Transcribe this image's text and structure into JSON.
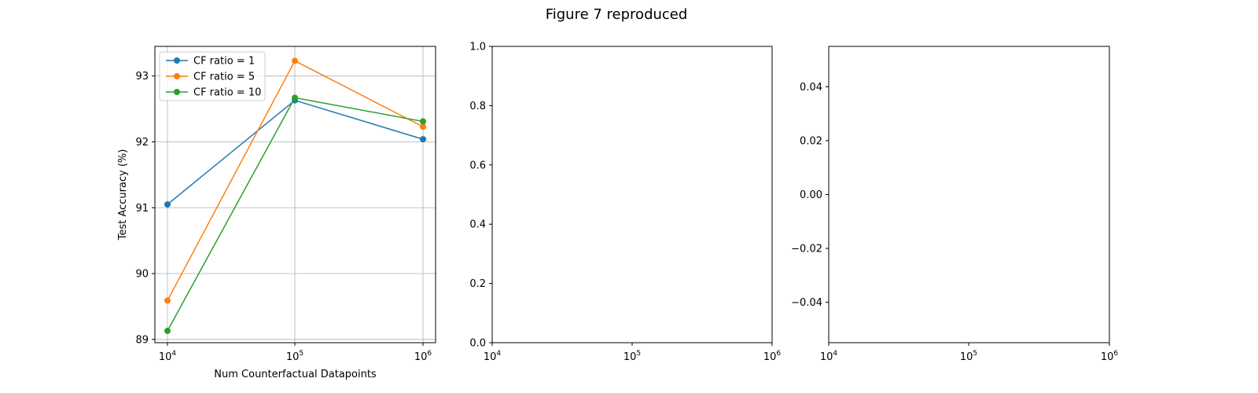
{
  "figure": {
    "title": "Figure 7 reproduced"
  },
  "chart_data": [
    {
      "type": "line",
      "xscale": "log",
      "x": [
        10000,
        100000,
        1000000
      ],
      "xticks": [
        "10^4",
        "10^5",
        "10^6"
      ],
      "xlabel": "Num Counterfactual Datapoints",
      "ylabel": "Test Accuracy (%)",
      "ylim": [
        88.95,
        93.45
      ],
      "yticks": [
        "89",
        "90",
        "91",
        "92",
        "93"
      ],
      "grid": true,
      "legend": "upper-left",
      "series": [
        {
          "name": "CF ratio = 1",
          "color": "#1f77b4",
          "values": [
            91.05,
            92.63,
            92.04
          ]
        },
        {
          "name": "CF ratio = 5",
          "color": "#ff7f0e",
          "values": [
            89.59,
            93.23,
            92.23
          ]
        },
        {
          "name": "CF ratio = 10",
          "color": "#2ca02c",
          "values": [
            89.13,
            92.67,
            92.31
          ]
        }
      ]
    },
    {
      "type": "line",
      "xscale": "log",
      "xticks": [
        "10^4",
        "10^5",
        "10^6"
      ],
      "ylim": [
        0,
        1
      ],
      "yticks": [
        "0.0",
        "0.2",
        "0.4",
        "0.6",
        "0.8",
        "1.0"
      ],
      "grid": false,
      "series": []
    },
    {
      "type": "line",
      "xscale": "log",
      "xticks": [
        "10^4",
        "10^5",
        "10^6"
      ],
      "ylim": [
        -0.055,
        0.055
      ],
      "yticks": [
        "−0.04",
        "−0.02",
        "0.00",
        "0.02",
        "0.04"
      ],
      "grid": false,
      "series": []
    }
  ]
}
